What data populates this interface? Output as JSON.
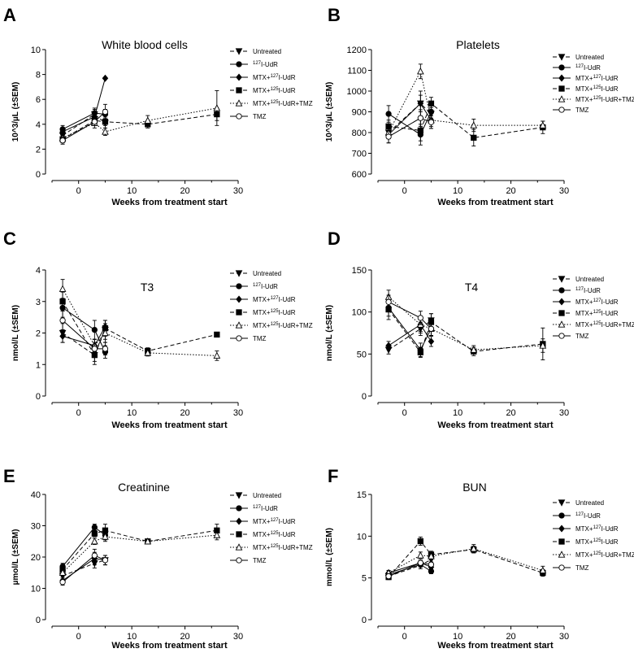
{
  "figure": {
    "series_names": [
      "Untreated",
      "127I-UdR",
      "MTX+127I-UdR",
      "MTX+125I-UdR",
      "MTX+125I-UdR+TMZ",
      "TMZ"
    ]
  },
  "chart_data": [
    {
      "id": "A",
      "type": "line",
      "panel_label": "A",
      "title": "White blood cells",
      "xlabel": "Weeks from treatment start",
      "ylabel": "10^3/µL (±SEM)",
      "xlim": [
        -5,
        30
      ],
      "ylim": [
        0,
        10
      ],
      "xticks": [
        0,
        10,
        20,
        30
      ],
      "yticks": [
        0,
        2,
        4,
        6,
        8,
        10
      ],
      "series": [
        {
          "name": "Untreated",
          "x": [
            -3,
            3,
            5
          ],
          "y": [
            3.1,
            4.8,
            4.1
          ],
          "err": [
            0.3,
            0.5,
            0.4
          ]
        },
        {
          "name": "127I-UdR",
          "x": [
            -3,
            3,
            5
          ],
          "y": [
            3.6,
            4.9,
            4.8
          ],
          "err": [
            0.3,
            0.3,
            0.4
          ]
        },
        {
          "name": "MTX+127I-UdR",
          "x": [
            -3,
            3,
            5
          ],
          "y": [
            3.4,
            4.6,
            7.7
          ],
          "err": [
            0.2,
            0.3,
            0.0
          ]
        },
        {
          "name": "MTX+125I-UdR",
          "x": [
            -3,
            3,
            5,
            13,
            26
          ],
          "y": [
            2.8,
            4.3,
            4.2,
            4.0,
            4.8
          ],
          "err": [
            0.3,
            0.4,
            0.3,
            0.3,
            0.5
          ]
        },
        {
          "name": "MTX+125I-UdR+TMZ",
          "x": [
            -3,
            3,
            5,
            13,
            26
          ],
          "y": [
            2.9,
            4.1,
            3.4,
            4.3,
            5.3
          ],
          "err": [
            0.2,
            0.4,
            0.3,
            0.4,
            1.4
          ]
        },
        {
          "name": "TMZ",
          "x": [
            -3,
            3,
            5
          ],
          "y": [
            2.7,
            4.2,
            5.0
          ],
          "err": [
            0.3,
            0.3,
            0.6
          ]
        }
      ]
    },
    {
      "id": "B",
      "type": "line",
      "panel_label": "B",
      "title": "Platelets",
      "xlabel": "Weeks from treatment start",
      "ylabel": "10^3/µL (±SEM)",
      "xlim": [
        -5,
        30
      ],
      "ylim": [
        600,
        1200
      ],
      "xticks": [
        0,
        10,
        20,
        30
      ],
      "yticks": [
        600,
        700,
        800,
        900,
        1000,
        1100,
        1200
      ],
      "series": [
        {
          "name": "Untreated",
          "x": [
            -3,
            3,
            5
          ],
          "y": [
            800,
            940,
            890
          ],
          "err": [
            30,
            40,
            30
          ]
        },
        {
          "name": "127I-UdR",
          "x": [
            -3,
            3,
            5
          ],
          "y": [
            890,
            790,
            900
          ],
          "err": [
            40,
            50,
            30
          ]
        },
        {
          "name": "MTX+127I-UdR",
          "x": [
            -3,
            3,
            5
          ],
          "y": [
            790,
            940,
            860
          ],
          "err": [
            40,
            60,
            30
          ]
        },
        {
          "name": "MTX+125I-UdR",
          "x": [
            -3,
            3,
            5,
            13,
            26
          ],
          "y": [
            830,
            810,
            940,
            775,
            825
          ],
          "err": [
            30,
            50,
            30,
            40,
            30
          ]
        },
        {
          "name": "MTX+125I-UdR+TMZ",
          "x": [
            -3,
            3,
            5,
            13,
            26
          ],
          "y": [
            800,
            1095,
            860,
            835,
            835
          ],
          "err": [
            30,
            35,
            40,
            30,
            20
          ]
        },
        {
          "name": "TMZ",
          "x": [
            -3,
            3,
            5
          ],
          "y": [
            780,
            870,
            850
          ],
          "err": [
            30,
            40,
            30
          ]
        }
      ]
    },
    {
      "id": "C",
      "type": "line",
      "panel_label": "C",
      "title": "T3",
      "xlabel": "Weeks from treatment start",
      "ylabel": "nmol/L (±SEM)",
      "xlim": [
        -5,
        30
      ],
      "ylim": [
        0,
        4
      ],
      "xticks": [
        0,
        10,
        20,
        30
      ],
      "yticks": [
        0,
        1,
        2,
        3,
        4
      ],
      "series": [
        {
          "name": "Untreated",
          "x": [
            -3,
            3,
            5
          ],
          "y": [
            2.0,
            1.3,
            2.1
          ],
          "err": [
            0.3,
            0.2,
            0.3
          ]
        },
        {
          "name": "127I-UdR",
          "x": [
            -3,
            3,
            5
          ],
          "y": [
            2.8,
            2.1,
            1.4
          ],
          "err": [
            0.3,
            0.3,
            0.2
          ]
        },
        {
          "name": "MTX+127I-UdR",
          "x": [
            -3,
            3,
            5
          ],
          "y": [
            1.9,
            1.6,
            2.2
          ],
          "err": [
            0.2,
            0.2,
            0.2
          ]
        },
        {
          "name": "MTX+125I-UdR",
          "x": [
            -3,
            3,
            5,
            13,
            26
          ],
          "y": [
            3.0,
            1.3,
            2.15,
            1.43,
            1.95
          ],
          "err": [
            0.3,
            0.3,
            0.25,
            0.1,
            0.05
          ]
        },
        {
          "name": "MTX+125I-UdR+TMZ",
          "x": [
            -3,
            3,
            5,
            13,
            26
          ],
          "y": [
            3.4,
            1.6,
            2.0,
            1.37,
            1.28
          ],
          "err": [
            0.3,
            0.2,
            0.3,
            0.1,
            0.15
          ]
        },
        {
          "name": "TMZ",
          "x": [
            -3,
            3,
            5
          ],
          "y": [
            2.4,
            1.5,
            1.5
          ],
          "err": [
            0.3,
            0.2,
            0.2
          ]
        }
      ]
    },
    {
      "id": "D",
      "type": "line",
      "panel_label": "D",
      "title": "T4",
      "xlabel": "Weeks from treatment start",
      "ylabel": "nmol/L (±SEM)",
      "xlim": [
        -5,
        30
      ],
      "ylim": [
        0,
        150
      ],
      "xticks": [
        0,
        10,
        20,
        30
      ],
      "yticks": [
        0,
        50,
        100,
        150
      ],
      "series": [
        {
          "name": "Untreated",
          "x": [
            -3,
            3,
            5
          ],
          "y": [
            55,
            80,
            90
          ],
          "err": [
            5,
            8,
            8
          ]
        },
        {
          "name": "127I-UdR",
          "x": [
            -3,
            3,
            5
          ],
          "y": [
            105,
            55,
            80
          ],
          "err": [
            10,
            8,
            8
          ]
        },
        {
          "name": "MTX+127I-UdR",
          "x": [
            -3,
            3,
            5
          ],
          "y": [
            60,
            85,
            65
          ],
          "err": [
            5,
            8,
            6
          ]
        },
        {
          "name": "MTX+125I-UdR",
          "x": [
            -3,
            3,
            5,
            13,
            26
          ],
          "y": [
            103,
            52,
            88,
            53,
            62
          ],
          "err": [
            12,
            6,
            10,
            5,
            19
          ]
        },
        {
          "name": "MTX+125I-UdR+TMZ",
          "x": [
            -3,
            3,
            5,
            13,
            26
          ],
          "y": [
            118,
            85,
            80,
            55,
            60
          ],
          "err": [
            8,
            10,
            8,
            5,
            8
          ]
        },
        {
          "name": "TMZ",
          "x": [
            -3,
            3,
            5
          ],
          "y": [
            112,
            93,
            80
          ],
          "err": [
            8,
            8,
            8
          ]
        }
      ]
    },
    {
      "id": "E",
      "type": "line",
      "panel_label": "E",
      "title": "Creatinine",
      "xlabel": "Weeks from treatment start",
      "ylabel": "µmol/L (±SEM)",
      "xlim": [
        -5,
        30
      ],
      "ylim": [
        0,
        40
      ],
      "xticks": [
        0,
        10,
        20,
        30
      ],
      "yticks": [
        0,
        10,
        20,
        30,
        40
      ],
      "series": [
        {
          "name": "Untreated",
          "x": [
            -3,
            3,
            5
          ],
          "y": [
            14,
            18,
            19
          ],
          "err": [
            1.5,
            1.5,
            1.5
          ]
        },
        {
          "name": "127I-UdR",
          "x": [
            -3,
            3,
            5
          ],
          "y": [
            17,
            29.5,
            27
          ],
          "err": [
            1,
            1,
            1.5
          ]
        },
        {
          "name": "MTX+127I-UdR",
          "x": [
            -3,
            3,
            5
          ],
          "y": [
            12.5,
            19.5,
            19
          ],
          "err": [
            1,
            2,
            1.5
          ]
        },
        {
          "name": "MTX+125I-UdR",
          "x": [
            -3,
            3,
            5,
            13,
            26
          ],
          "y": [
            16,
            27.5,
            28.5,
            25,
            28.5
          ],
          "err": [
            1,
            1,
            2,
            0.5,
            2
          ]
        },
        {
          "name": "MTX+125I-UdR+TMZ",
          "x": [
            -3,
            3,
            5,
            13,
            26
          ],
          "y": [
            15,
            25,
            26.5,
            25,
            27
          ],
          "err": [
            1,
            1,
            1.5,
            0.5,
            1.5
          ]
        },
        {
          "name": "TMZ",
          "x": [
            -3,
            3,
            5
          ],
          "y": [
            12,
            20.5,
            19
          ],
          "err": [
            1,
            2,
            1.5
          ]
        }
      ]
    },
    {
      "id": "F",
      "type": "line",
      "panel_label": "F",
      "title": "BUN",
      "xlabel": "Weeks from treatment start",
      "ylabel": "mmol/L (±SEM)",
      "xlim": [
        -5,
        30
      ],
      "ylim": [
        0,
        15
      ],
      "xticks": [
        0,
        10,
        20,
        30
      ],
      "yticks": [
        0,
        5,
        10,
        15
      ],
      "series": [
        {
          "name": "Untreated",
          "x": [
            -3,
            3,
            5
          ],
          "y": [
            5.2,
            6.5,
            7.2
          ],
          "err": [
            0.3,
            0.4,
            0.3
          ]
        },
        {
          "name": "127I-UdR",
          "x": [
            -3,
            3,
            5
          ],
          "y": [
            5.4,
            6.6,
            5.8
          ],
          "err": [
            0.3,
            0.3,
            0.3
          ]
        },
        {
          "name": "MTX+127I-UdR",
          "x": [
            -3,
            3,
            5
          ],
          "y": [
            5.6,
            6.8,
            6.3
          ],
          "err": [
            0.3,
            0.3,
            0.3
          ]
        },
        {
          "name": "MTX+125I-UdR",
          "x": [
            -3,
            3,
            5,
            13,
            26
          ],
          "y": [
            5.1,
            9.4,
            7.8,
            8.4,
            5.6
          ],
          "err": [
            0.3,
            0.5,
            0.4,
            0.4,
            0.4
          ]
        },
        {
          "name": "MTX+125I-UdR+TMZ",
          "x": [
            -3,
            3,
            5,
            13,
            26
          ],
          "y": [
            5.6,
            7.7,
            7.6,
            8.5,
            5.9
          ],
          "err": [
            0.3,
            0.4,
            0.4,
            0.5,
            0.5
          ]
        },
        {
          "name": "TMZ",
          "x": [
            -3,
            3,
            5
          ],
          "y": [
            5.2,
            6.8,
            6.6
          ],
          "err": [
            0.3,
            0.3,
            0.3
          ]
        }
      ]
    }
  ]
}
